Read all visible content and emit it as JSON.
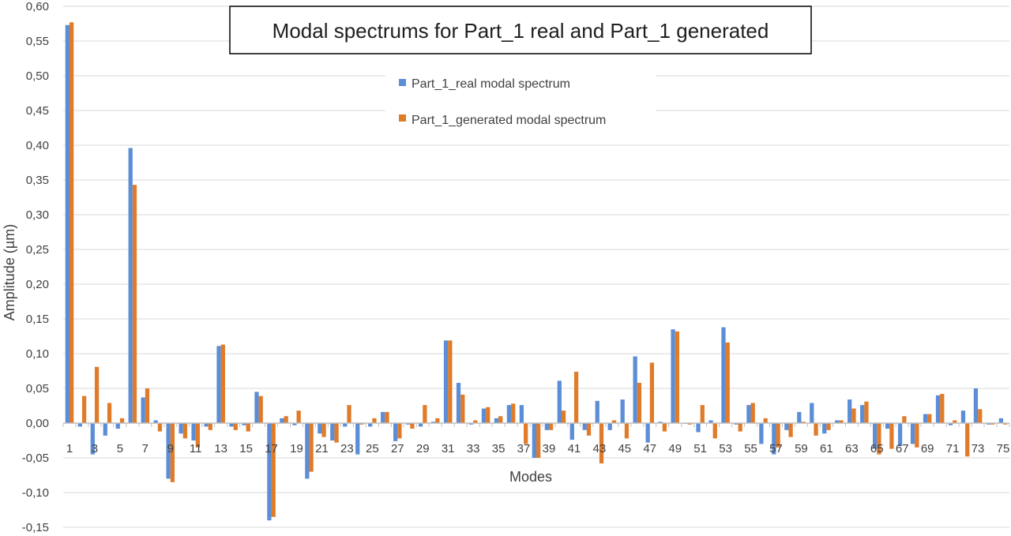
{
  "chart_data": {
    "type": "bar",
    "title": "Modal spectrums for Part_1 real and Part_1 generated",
    "xlabel": "Modes",
    "ylabel": "Amplitude  (µm)",
    "ylim": [
      -0.15,
      0.6
    ],
    "ytick_step": 0.05,
    "ytick_labels": [
      "-0,15",
      "-0,10",
      "-0,05",
      "0,00",
      "0,05",
      "0,10",
      "0,15",
      "0,20",
      "0,25",
      "0,30",
      "0,35",
      "0,40",
      "0,45",
      "0,50",
      "0,55",
      "0,60"
    ],
    "xtick_labels": [
      "1",
      "3",
      "5",
      "7",
      "9",
      "11",
      "13",
      "15",
      "17",
      "19",
      "21",
      "23",
      "25",
      "27",
      "29",
      "31",
      "33",
      "35",
      "37",
      "39",
      "41",
      "43",
      "45",
      "47",
      "49",
      "51",
      "53",
      "55",
      "57",
      "59",
      "61",
      "63",
      "65",
      "67",
      "69",
      "71",
      "73",
      "75"
    ],
    "categories": [
      "1",
      "2",
      "3",
      "4",
      "5",
      "6",
      "7",
      "8",
      "9",
      "10",
      "11",
      "12",
      "13",
      "14",
      "15",
      "16",
      "17",
      "18",
      "19",
      "20",
      "21",
      "22",
      "23",
      "24",
      "25",
      "26",
      "27",
      "28",
      "29",
      "30",
      "31",
      "32",
      "33",
      "34",
      "35",
      "36",
      "37",
      "38",
      "39",
      "40",
      "41",
      "42",
      "43",
      "44",
      "45",
      "46",
      "47",
      "48",
      "49",
      "50",
      "51",
      "52",
      "53",
      "54",
      "55",
      "56",
      "57",
      "58",
      "59",
      "60",
      "61",
      "62",
      "63",
      "64",
      "65",
      "66",
      "67",
      "68",
      "69",
      "70",
      "71",
      "72",
      "73",
      "74",
      "75"
    ],
    "grid": true,
    "legend_position": "top-center",
    "series": [
      {
        "name": "Part_1_real  modal spectrum",
        "color": "#5B8ED6",
        "values": [
          0.573,
          -0.005,
          -0.045,
          -0.018,
          -0.008,
          0.396,
          0.037,
          0.004,
          -0.08,
          -0.015,
          -0.025,
          -0.005,
          0.111,
          -0.005,
          -0.003,
          0.045,
          -0.14,
          0.007,
          -0.003,
          -0.08,
          -0.015,
          -0.025,
          -0.005,
          -0.045,
          -0.005,
          0.016,
          -0.026,
          -0.002,
          -0.005,
          0.002,
          0.119,
          0.058,
          -0.002,
          0.021,
          0.007,
          0.026,
          0.026,
          -0.05,
          -0.01,
          0.061,
          -0.024,
          -0.01,
          0.032,
          -0.01,
          0.034,
          0.096,
          -0.028,
          0.002,
          0.135,
          -0.001,
          -0.013,
          0.004,
          0.138,
          -0.002,
          0.026,
          -0.03,
          -0.045,
          -0.01,
          0.016,
          0.029,
          -0.015,
          0.004,
          0.034,
          0.026,
          -0.037,
          -0.008,
          -0.033,
          -0.03,
          0.013,
          0.04,
          -0.003,
          0.018,
          0.05,
          -0.002,
          0.007
        ]
      },
      {
        "name": "Part_1_generated  modal spectrum",
        "color": "#E07B2A",
        "values": [
          0.577,
          0.039,
          0.081,
          0.029,
          0.007,
          0.343,
          0.05,
          -0.012,
          -0.085,
          -0.022,
          -0.035,
          -0.01,
          0.113,
          -0.01,
          -0.012,
          0.039,
          -0.135,
          0.01,
          0.018,
          -0.07,
          -0.02,
          -0.028,
          0.026,
          -0.002,
          0.007,
          0.016,
          -0.022,
          -0.008,
          0.026,
          0.007,
          0.119,
          0.041,
          0.004,
          0.023,
          0.01,
          0.028,
          -0.03,
          -0.05,
          -0.01,
          0.018,
          0.074,
          -0.018,
          -0.058,
          0.004,
          -0.022,
          0.058,
          0.087,
          -0.012,
          0.132,
          -0.002,
          0.026,
          -0.022,
          0.116,
          -0.012,
          0.029,
          0.007,
          -0.035,
          -0.02,
          0.002,
          -0.018,
          -0.01,
          0.004,
          0.021,
          0.031,
          -0.045,
          -0.037,
          0.01,
          -0.035,
          0.013,
          0.042,
          0.004,
          -0.048,
          0.02,
          -0.002,
          -0.002
        ]
      }
    ]
  }
}
